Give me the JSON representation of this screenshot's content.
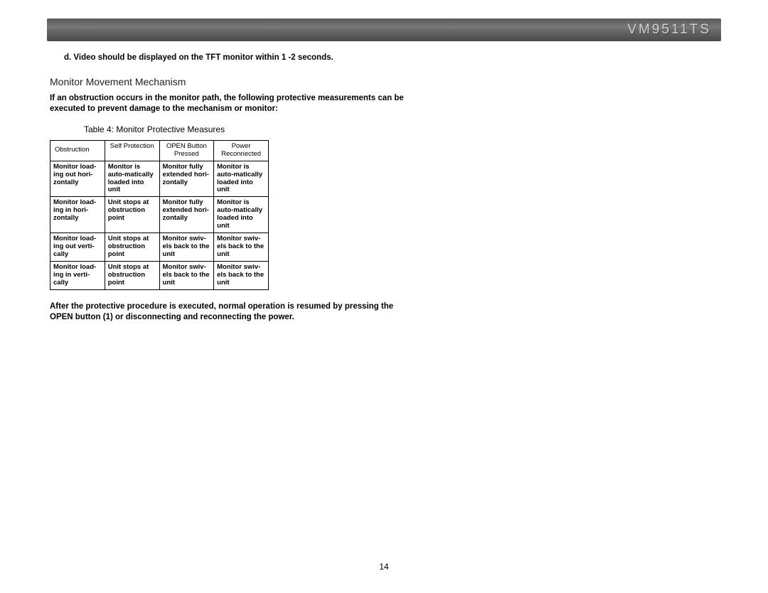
{
  "header": {
    "title": "VM9511TS",
    "bg_gradient": [
      "#5a5a5a",
      "#7a7a7a",
      "#6a6a6a",
      "#4a4a4a"
    ],
    "title_color": "#d0d0d0"
  },
  "content": {
    "list_item_d": "d.  Video should be displayed on the TFT monitor within 1 -2 seconds.",
    "section_heading": "Monitor Movement Mechanism",
    "intro_para": "If an obstruction occurs in the monitor path, the following protective measurements can be executed to prevent damage to the mechanism or monitor:",
    "table_caption": "Table 4: Monitor Protective Measures",
    "outro_para": "After the protective procedure is executed, normal operation is resumed by pressing the OPEN button (1) or disconnecting and reconnecting the power."
  },
  "table": {
    "columns": [
      "Obstruction",
      "Self Protection",
      "OPEN Button Pressed",
      "Power Reconnected"
    ],
    "col_widths": [
      "77px",
      "77px",
      "77px",
      "77px"
    ],
    "rows": [
      [
        "Monitor load-ing out hori-zontally",
        "Monitor is auto-matically loaded into unit",
        "Monitor fully extended hori-zontally",
        "Monitor is auto-matically loaded into unit"
      ],
      [
        "Monitor load-ing in hori-zontally",
        "Unit stops at obstruction point",
        "Monitor fully extended hori-zontally",
        "Monitor is auto-matically loaded into unit"
      ],
      [
        "Monitor load-ing out verti-cally",
        "Unit stops at obstruction point",
        "Monitor swiv-els back to the unit",
        "Monitor swiv-els back to the unit"
      ],
      [
        "Monitor load-ing in verti-cally",
        "Unit stops at obstruction point",
        "Monitor swiv-els back to the unit",
        "Monitor swiv-els back to the unit"
      ]
    ]
  },
  "page_number": "14"
}
